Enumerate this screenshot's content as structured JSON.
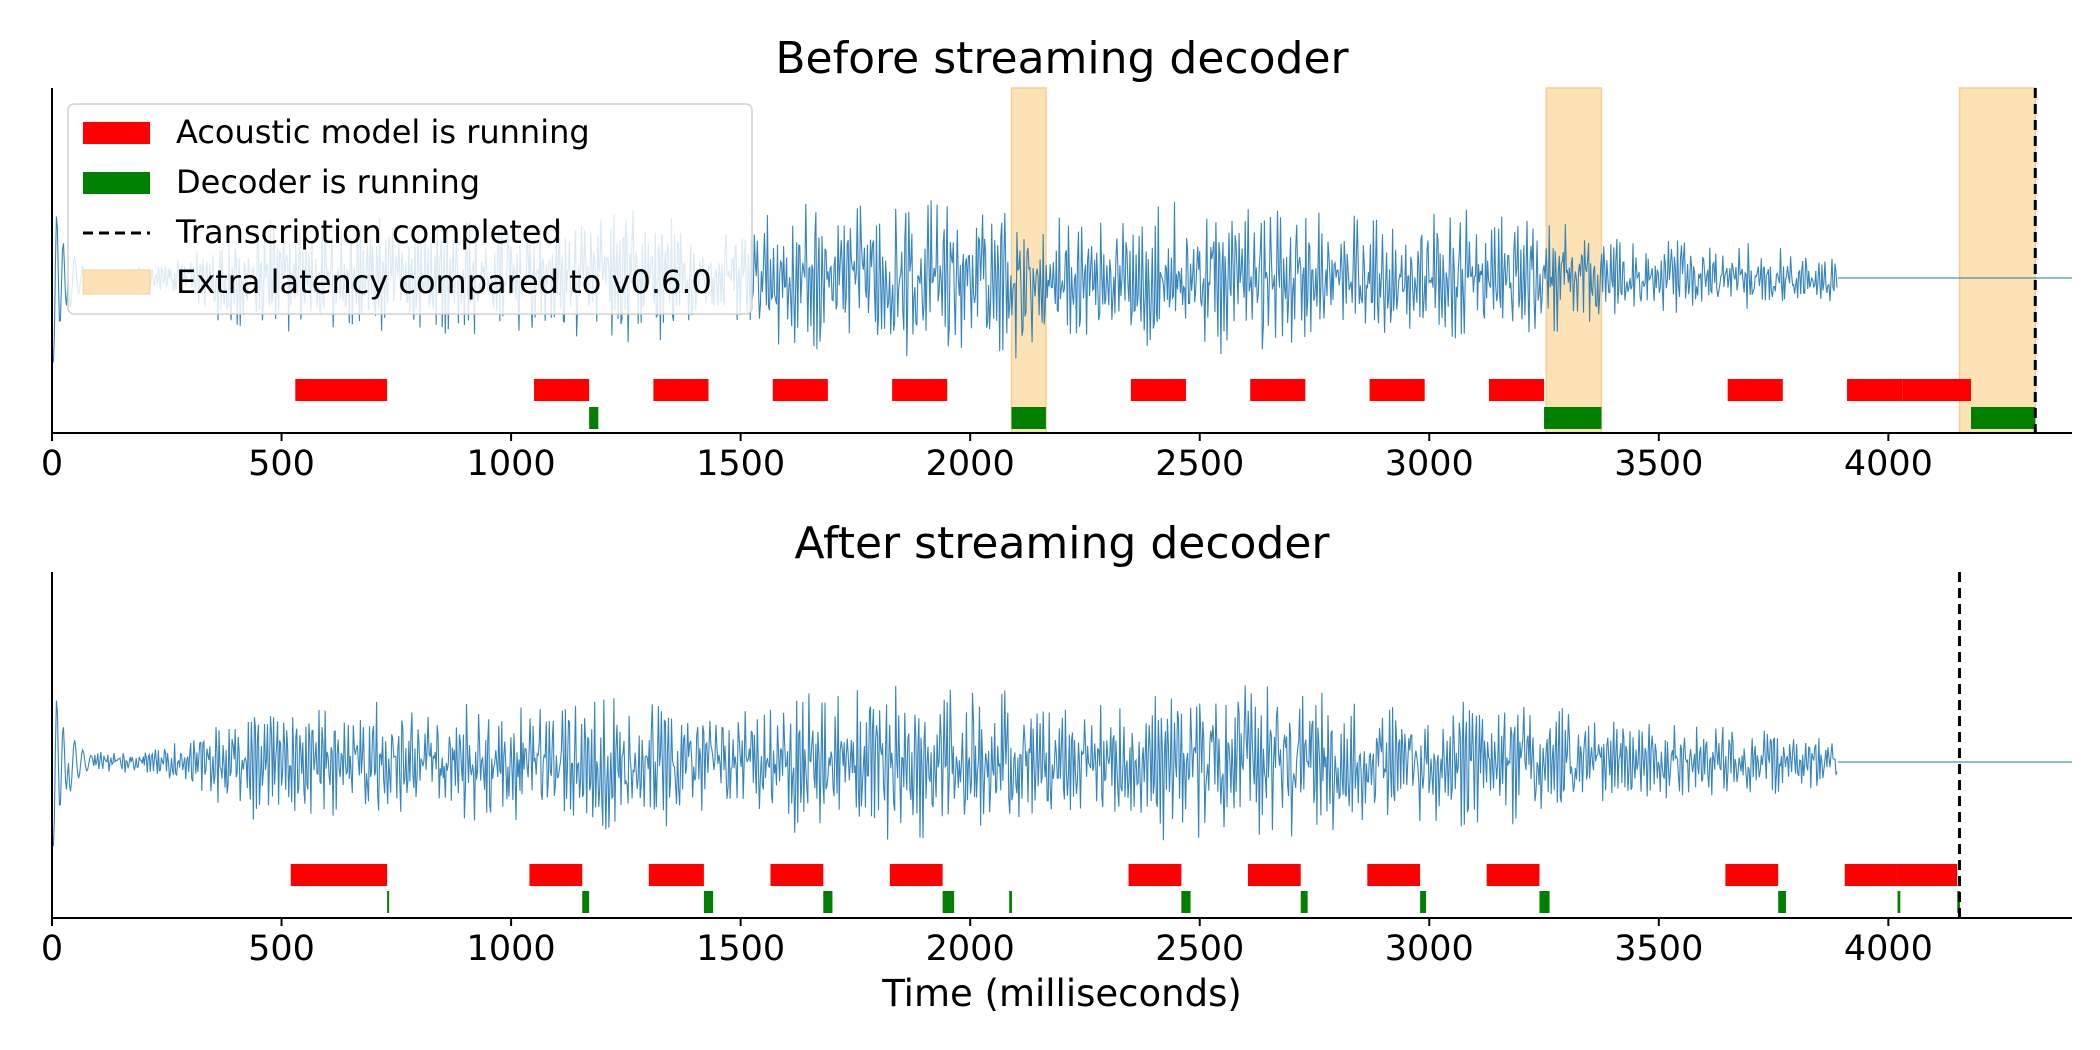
{
  "chart_data": [
    {
      "type": "timeline",
      "title": "Before streaming decoder",
      "xlabel": "",
      "xlim": [
        0,
        4400
      ],
      "xticks": [
        0,
        500,
        1000,
        1500,
        2000,
        2500,
        3000,
        3500,
        4000
      ],
      "waveform_end_ms": 3890,
      "transcription_completed_ms": 4320,
      "acoustic_model_running": [
        [
          530,
          730
        ],
        [
          1050,
          1170
        ],
        [
          1310,
          1430
        ],
        [
          1570,
          1690
        ],
        [
          1830,
          1950
        ],
        [
          2350,
          2470
        ],
        [
          2610,
          2730
        ],
        [
          2870,
          2990
        ],
        [
          3130,
          3250
        ],
        [
          3650,
          3770
        ],
        [
          3910,
          4030
        ],
        [
          4030,
          4180
        ]
      ],
      "decoder_running": [
        [
          1170,
          1190
        ],
        [
          2090,
          2165
        ],
        [
          3250,
          3375
        ],
        [
          4180,
          4320
        ]
      ],
      "extra_latency": [
        [
          2090,
          2165
        ],
        [
          3255,
          3375
        ],
        [
          4155,
          4320
        ]
      ],
      "legend": [
        {
          "label": "Acoustic model is running",
          "color": "#ff0000",
          "style": "bar"
        },
        {
          "label": "Decoder is running",
          "color": "#008000",
          "style": "bar"
        },
        {
          "label": "Transcription completed",
          "color": "#000000",
          "style": "dashed"
        },
        {
          "label": "Extra latency compared to v0.6.0",
          "color": "#fce2b4",
          "style": "span"
        }
      ],
      "legend_position": "upper left"
    },
    {
      "type": "timeline",
      "title": "After streaming decoder",
      "xlabel": "Time (milliseconds)",
      "xlim": [
        0,
        4400
      ],
      "xticks": [
        0,
        500,
        1000,
        1500,
        2000,
        2500,
        3000,
        3500,
        4000
      ],
      "waveform_end_ms": 3890,
      "transcription_completed_ms": 4155,
      "acoustic_model_running": [
        [
          520,
          730
        ],
        [
          1040,
          1155
        ],
        [
          1300,
          1420
        ],
        [
          1565,
          1680
        ],
        [
          1825,
          1940
        ],
        [
          2345,
          2460
        ],
        [
          2605,
          2720
        ],
        [
          2865,
          2980
        ],
        [
          3125,
          3240
        ],
        [
          3645,
          3760
        ],
        [
          3905,
          4020
        ],
        [
          4020,
          4150
        ]
      ],
      "decoder_running": [
        [
          730,
          734
        ],
        [
          1155,
          1170
        ],
        [
          1420,
          1440
        ],
        [
          1680,
          1700
        ],
        [
          1940,
          1965
        ],
        [
          2085,
          2091
        ],
        [
          2460,
          2480
        ],
        [
          2720,
          2735
        ],
        [
          2980,
          2993
        ],
        [
          3240,
          3262
        ],
        [
          3760,
          3777
        ],
        [
          4020,
          4026
        ],
        [
          4150,
          4156
        ]
      ],
      "extra_latency": []
    }
  ],
  "colors": {
    "waveform": "#1f77b4",
    "acoustic": "#ff0000",
    "decoder": "#008000",
    "latency": "#fce2b4",
    "latency_edge": "#f5cf8f"
  }
}
